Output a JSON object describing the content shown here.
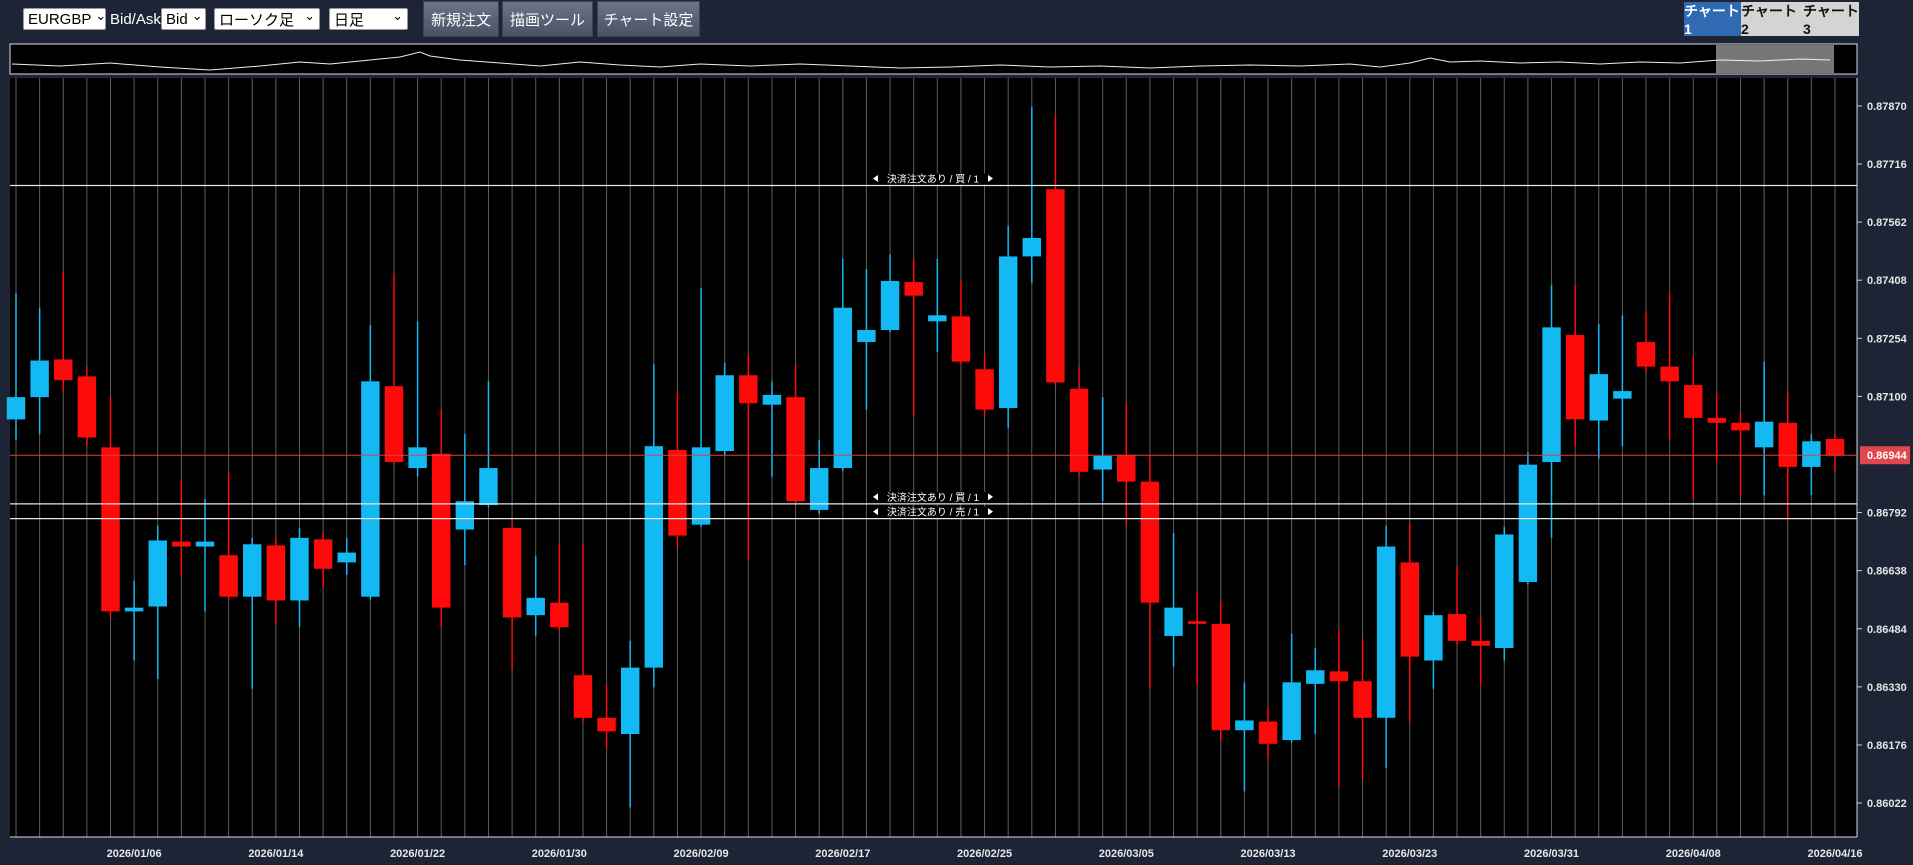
{
  "toolbar": {
    "symbol": "EURGBP",
    "price_type_label": "Bid/Ask",
    "price_type": "Bid",
    "chart_style": "ローソク足",
    "timeframe": "日足",
    "buttons": [
      "新規注文",
      "描画ツール",
      "チャート設定"
    ],
    "tabs": [
      "チャート1",
      "チャート2",
      "チャート3"
    ]
  },
  "chart_data": {
    "type": "candlestick",
    "categories": [
      null,
      null,
      null,
      null,
      null,
      "2026/01/06",
      null,
      null,
      null,
      null,
      null,
      "2026/01/14",
      null,
      null,
      null,
      null,
      null,
      "2026/01/22",
      null,
      null,
      null,
      null,
      null,
      "2026/01/30",
      null,
      null,
      null,
      null,
      null,
      "2026/02/09",
      null,
      null,
      null,
      null,
      null,
      "2026/02/17",
      null,
      null,
      null,
      null,
      null,
      "2026/02/25",
      null,
      null,
      null,
      null,
      null,
      "2026/03/05",
      null,
      null,
      null,
      null,
      null,
      "2026/03/13",
      null,
      null,
      null,
      null,
      null,
      "2026/03/23",
      null,
      null,
      null,
      null,
      null,
      "2026/03/31",
      null,
      null,
      null,
      null,
      null,
      "2026/04/08",
      null,
      null,
      null,
      null,
      null,
      "2026/04/16"
    ],
    "open": [
      0.87039,
      0.87098,
      0.87198,
      0.87153,
      0.86965,
      0.8653,
      0.86543,
      0.86715,
      0.86702,
      0.86679,
      0.86569,
      0.86705,
      0.86559,
      0.86721,
      0.8666,
      0.86569,
      0.87127,
      0.8691,
      0.86948,
      0.86747,
      0.86812,
      0.86751,
      0.8652,
      0.86553,
      0.86361,
      0.86248,
      0.86205,
      0.86381,
      0.86958,
      0.8676,
      0.86955,
      0.87156,
      0.87078,
      0.87098,
      0.86799,
      0.8691,
      0.87244,
      0.87276,
      0.87403,
      0.87299,
      0.87312,
      0.87172,
      0.87069,
      0.87471,
      0.87649,
      0.8712,
      0.86906,
      0.86945,
      0.86874,
      0.86465,
      0.86504,
      0.86497,
      0.86215,
      0.86238,
      0.86189,
      0.86338,
      0.86371,
      0.86345,
      0.86248,
      0.8666,
      0.864,
      0.86523,
      0.86452,
      0.86433,
      0.86608,
      0.86926,
      0.87263,
      0.87036,
      0.87094,
      0.87244,
      0.87179,
      0.8713,
      0.87043,
      0.8703,
      0.86965,
      0.8703,
      0.86913,
      0.86987
    ],
    "high": [
      0.87374,
      0.87335,
      0.87432,
      0.87179,
      0.87098,
      0.86611,
      0.86757,
      0.8688,
      0.86828,
      0.86897,
      0.86725,
      0.86725,
      0.86751,
      0.86741,
      0.86725,
      0.87289,
      0.87425,
      0.87299,
      0.87065,
      0.87,
      0.8714,
      0.8678,
      0.86676,
      0.86708,
      0.86708,
      0.86335,
      0.86452,
      0.87185,
      0.87114,
      0.87387,
      0.87189,
      0.87211,
      0.8714,
      0.87185,
      0.86984,
      0.87464,
      0.87438,
      0.87477,
      0.87464,
      0.87464,
      0.87406,
      0.87211,
      0.87552,
      0.87867,
      0.87847,
      0.87179,
      0.87098,
      0.87082,
      0.86945,
      0.86738,
      0.86585,
      0.86556,
      0.86342,
      0.86277,
      0.86471,
      0.86433,
      0.86481,
      0.86458,
      0.86757,
      0.86764,
      0.8653,
      0.8665,
      0.86514,
      0.86754,
      0.86952,
      0.87396,
      0.87393,
      0.87292,
      0.87315,
      0.87325,
      0.87374,
      0.87205,
      0.87107,
      0.87056,
      0.87192,
      0.87114,
      0.87,
      0.87
    ],
    "low": [
      0.86984,
      0.87,
      0.87114,
      0.86968,
      0.86514,
      0.864,
      0.86351,
      0.86627,
      0.8653,
      0.86562,
      0.86325,
      0.86497,
      0.86488,
      0.86595,
      0.86627,
      0.86562,
      0.86919,
      0.86887,
      0.86491,
      0.86653,
      0.86806,
      0.86377,
      0.86465,
      0.86481,
      0.86238,
      0.86166,
      0.86011,
      0.86329,
      0.86699,
      0.86754,
      0.86945,
      0.86669,
      0.86887,
      0.86812,
      0.86789,
      0.86903,
      0.87065,
      0.8727,
      0.87049,
      0.87218,
      0.87185,
      0.87049,
      0.87017,
      0.874,
      0.8713,
      0.86887,
      0.86822,
      0.86757,
      0.86325,
      0.86384,
      0.86335,
      0.86186,
      0.86053,
      0.8614,
      0.86183,
      0.86205,
      0.86066,
      0.86085,
      0.86115,
      0.86238,
      0.86325,
      0.86442,
      0.86335,
      0.864,
      0.86601,
      0.86725,
      0.86968,
      0.86935,
      0.86968,
      0.87163,
      0.86984,
      0.86828,
      0.86926,
      0.86838,
      0.86838,
      0.86773,
      0.86838,
      0.86903
    ],
    "close": [
      0.87098,
      0.87195,
      0.87143,
      0.86991,
      0.8653,
      0.8654,
      0.86718,
      0.86702,
      0.86715,
      0.86569,
      0.86708,
      0.86559,
      0.86725,
      0.86643,
      0.86686,
      0.8714,
      0.86926,
      0.86965,
      0.8654,
      0.86822,
      0.8691,
      0.86514,
      0.86566,
      0.86488,
      0.86248,
      0.86212,
      0.86381,
      0.86968,
      0.86731,
      0.86965,
      0.87156,
      0.87082,
      0.87104,
      0.86822,
      0.8691,
      0.87335,
      0.87276,
      0.87406,
      0.87367,
      0.87315,
      0.87192,
      0.87065,
      0.87471,
      0.8752,
      0.87137,
      0.869,
      0.86942,
      0.86874,
      0.86553,
      0.8654,
      0.86497,
      0.86215,
      0.86241,
      0.86179,
      0.86342,
      0.86374,
      0.86345,
      0.86248,
      0.86702,
      0.8641,
      0.8652,
      0.86452,
      0.86439,
      0.86734,
      0.86919,
      0.87283,
      0.87039,
      0.87159,
      0.87114,
      0.87179,
      0.8714,
      0.87043,
      0.8703,
      0.8701,
      0.87033,
      0.86913,
      0.86981,
      0.86944
    ],
    "up_color": "#12b9f2",
    "down_color": "#ff0a0a",
    "ylim": [
      0.85932,
      0.87944
    ],
    "yticks": [
      {
        "value": 0.8787,
        "label": "0.87870"
      },
      0.87716,
      0.87562,
      0.87408,
      0.87254,
      {
        "value": 0.871,
        "label": "0.87100"
      },
      0.86792,
      0.86638,
      0.86484,
      {
        "value": 0.8633,
        "label": "0.86330"
      },
      0.86176,
      0.86022
    ],
    "grid": true,
    "current_price": 0.86944,
    "order_lines": [
      {
        "value": 0.87659,
        "label": "決済注文あり / 買 / 1"
      },
      {
        "value": 0.86815,
        "label": "決済注文あり / 買 / 1"
      },
      {
        "value": 0.86776,
        "label": "決済注文あり / 売 / 1"
      }
    ]
  }
}
